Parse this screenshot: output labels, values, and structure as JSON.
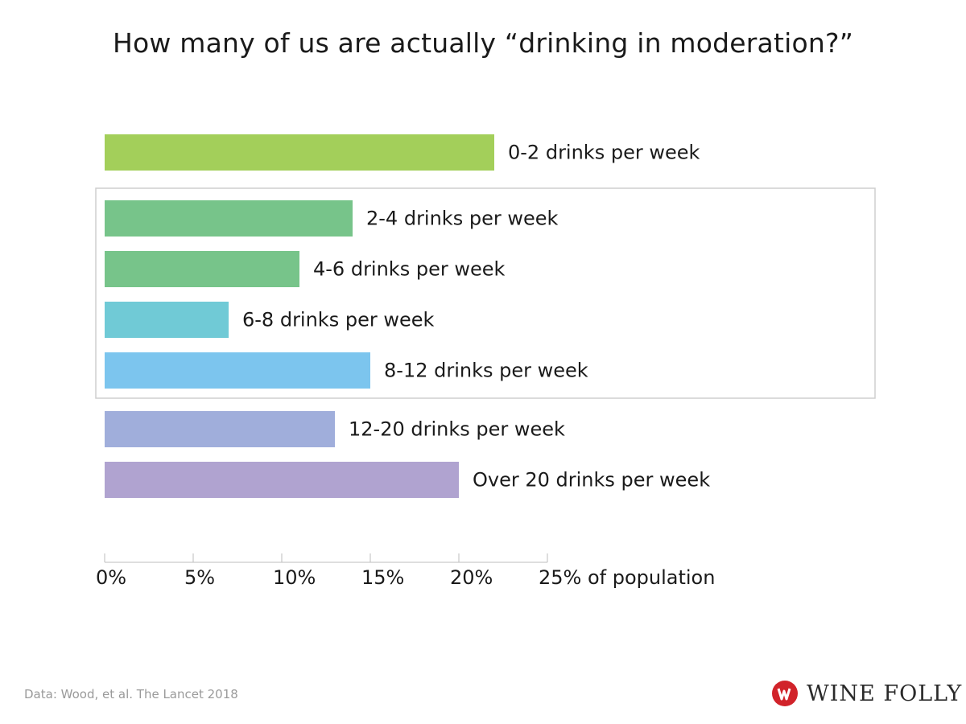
{
  "chart_data": {
    "type": "bar",
    "orientation": "horizontal",
    "title": "How many of us are actually “drinking in moderation?”",
    "xlabel": "of population",
    "categories": [
      "0-2 drinks per week",
      "2-4 drinks per week",
      "4-6 drinks per week",
      "6-8 drinks per week",
      "8-12 drinks per week",
      "12-20 drinks per week",
      "Over 20 drinks per week"
    ],
    "values": [
      22,
      14,
      11,
      7,
      15,
      13,
      20
    ],
    "colors": [
      "#a3cf5a",
      "#77c48a",
      "#77c48a",
      "#70cad6",
      "#7cc5ee",
      "#a0aedb",
      "#b0a3d0"
    ],
    "highlighted_categories": [
      "2-4 drinks per week",
      "4-6 drinks per week",
      "6-8 drinks per week",
      "8-12 drinks per week"
    ],
    "xlim": [
      0,
      25
    ],
    "xticks": [
      0,
      5,
      10,
      15,
      20,
      25
    ],
    "xtick_labels": [
      "0%",
      "5%",
      "10%",
      "15%",
      "20%",
      "25% of population"
    ],
    "grid": false
  },
  "footer": {
    "source": "Data: Wood, et al. The Lancet 2018"
  },
  "brand": {
    "name": "WINE FOLLY",
    "logo_icon": "wine-folly-logo-icon",
    "logo_color": "#d1232a"
  }
}
